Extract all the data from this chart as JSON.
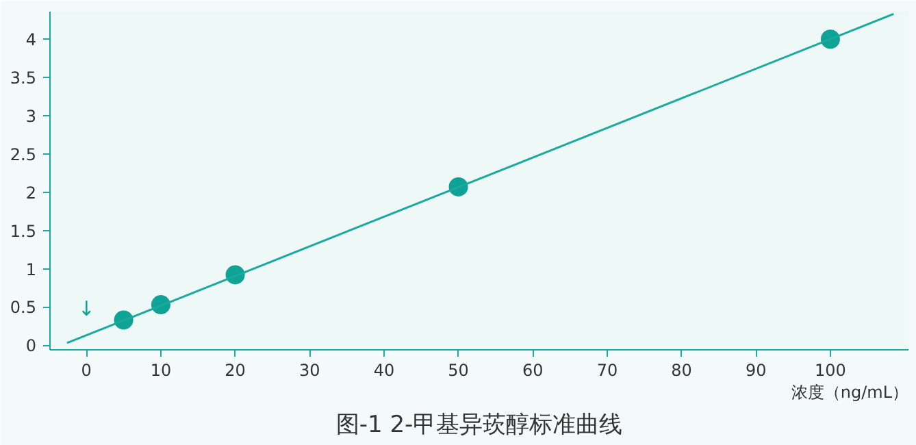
{
  "chart_data": {
    "type": "scatter",
    "title": "图-1 2-甲基异莰醇标准曲线",
    "xlabel": "浓度（ng/mL）",
    "x": [
      5,
      10,
      20,
      50,
      100
    ],
    "series": [
      {
        "color": "#0fa396",
        "values": [
          0.33,
          0.53,
          0.92,
          2.07,
          4.0
        ],
        "marker": "circle"
      },
      {
        "type": "line",
        "color": "#1aaa9e",
        "x": [
          -2.6,
          108.5
        ],
        "values": [
          0.03,
          4.33
        ],
        "marker": "none"
      }
    ],
    "annotations": [
      {
        "text": "↓",
        "x": 0,
        "y": 0.14
      }
    ],
    "xlim": [
      -4.9,
      110.5
    ],
    "ylim": [
      -0.06,
      4.36
    ],
    "xticks": [
      0,
      10,
      20,
      30,
      40,
      50,
      60,
      70,
      80,
      90,
      100
    ],
    "yticks": [
      0,
      {
        "value": 0.5,
        "label": "0.5"
      },
      1,
      {
        "value": 1.5,
        "label": "1.5"
      },
      2,
      {
        "value": 2.5,
        "label": "2.5"
      },
      3,
      {
        "value": 3.5,
        "label": "3.5"
      },
      4
    ],
    "grid": false
  }
}
